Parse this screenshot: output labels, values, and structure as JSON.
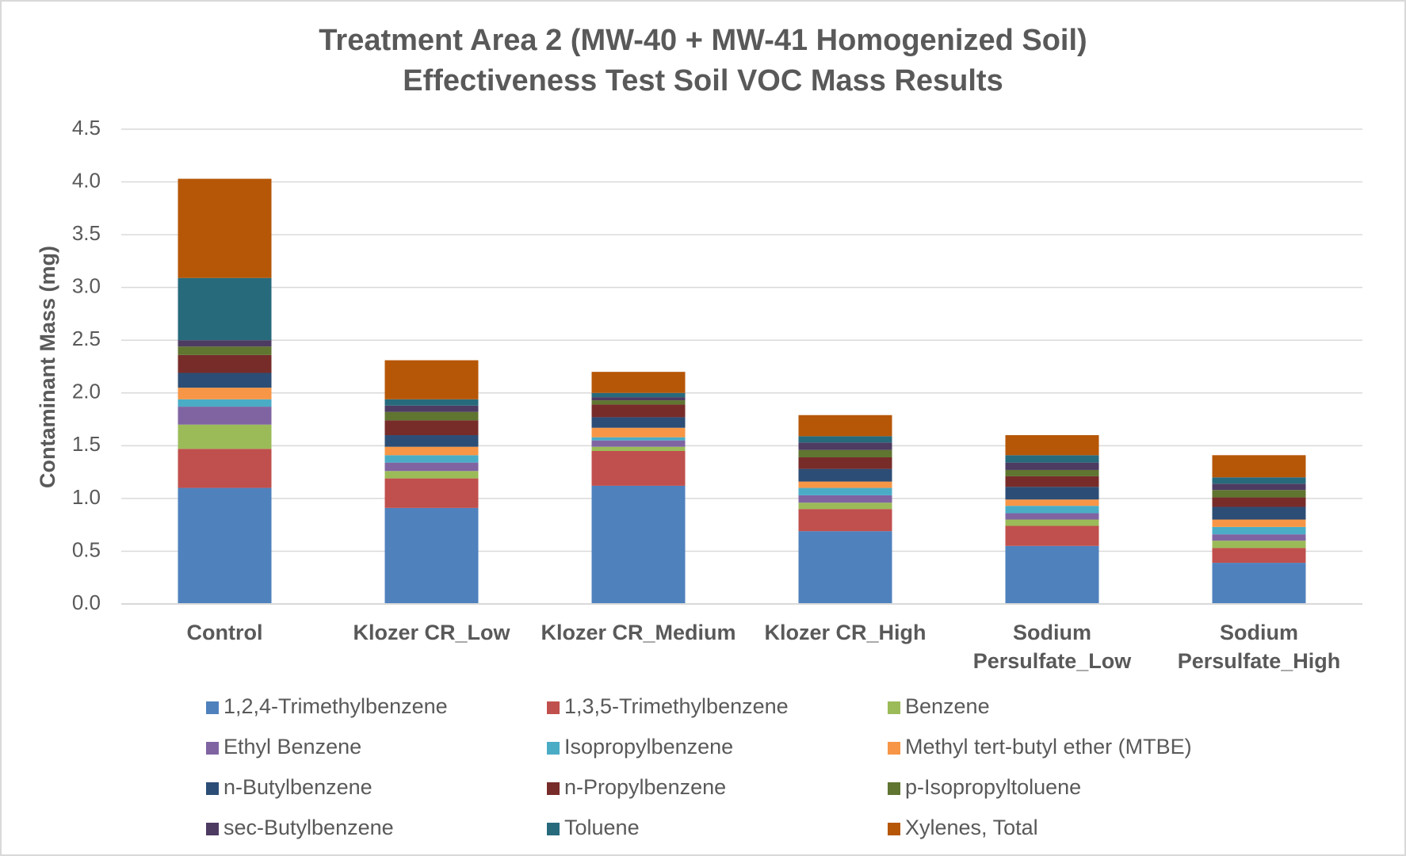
{
  "chart_data": {
    "type": "stacked_bar",
    "title": "Treatment Area 2 (MW-40 + MW-41 Homogenized Soil)",
    "subtitle": "Effectiveness Test Soil VOC Mass Results",
    "y_label": "Contaminant Mass (mg)",
    "categories": [
      "Control",
      "Klozer CR_Low",
      "Klozer CR_Medium",
      "Klozer CR_High",
      "Sodium Persulfate_Low",
      "Sodium Persulfate_High"
    ],
    "ylim": [
      0,
      4.5
    ],
    "yticks": [
      {
        "value": 0,
        "label": "0.0"
      },
      0.5,
      {
        "value": 1,
        "label": "1.0"
      },
      1.5,
      {
        "value": 2,
        "label": "2.0"
      },
      2.5,
      {
        "value": 3,
        "label": "3.0"
      },
      3.5,
      {
        "value": 4,
        "label": "4.0"
      },
      4.5
    ],
    "grid": true,
    "legend": "bottom",
    "series": [
      {
        "name": "1,2,4-Trimethylbenzene",
        "color": "#4f81bd",
        "values": [
          1.1,
          0.91,
          1.12,
          0.69,
          0.55,
          0.39
        ]
      },
      {
        "name": "1,3,5-Trimethylbenzene",
        "color": "#c0504d",
        "values": [
          0.37,
          0.28,
          0.33,
          0.21,
          0.19,
          0.14
        ]
      },
      {
        "name": "Benzene",
        "color": "#9bbb59",
        "values": [
          0.23,
          0.07,
          0.04,
          0.06,
          0.06,
          0.07
        ]
      },
      {
        "name": "Ethyl Benzene",
        "color": "#8064a2",
        "values": [
          0.17,
          0.08,
          0.06,
          0.07,
          0.06,
          0.06
        ]
      },
      {
        "name": "Isopropylbenzene",
        "color": "#4bacc6",
        "values": [
          0.07,
          0.07,
          0.03,
          0.07,
          0.07,
          0.07
        ]
      },
      {
        "name": "Methyl tert-butyl ether (MTBE)",
        "color": "#f79646",
        "values": [
          0.11,
          0.08,
          0.09,
          0.06,
          0.06,
          0.07
        ]
      },
      {
        "name": "n-Butylbenzene",
        "color": "#2c4d75",
        "values": [
          0.14,
          0.11,
          0.1,
          0.12,
          0.12,
          0.12
        ]
      },
      {
        "name": "n-Propylbenzene",
        "color": "#772c2a",
        "values": [
          0.17,
          0.14,
          0.12,
          0.11,
          0.1,
          0.09
        ]
      },
      {
        "name": "p-Isopropyltoluene",
        "color": "#5f7530",
        "values": [
          0.08,
          0.08,
          0.04,
          0.07,
          0.06,
          0.07
        ]
      },
      {
        "name": "sec-Butylbenzene",
        "color": "#4d3b62",
        "values": [
          0.06,
          0.06,
          0.03,
          0.07,
          0.07,
          0.06
        ]
      },
      {
        "name": "Toluene",
        "color": "#276a7c",
        "values": [
          0.59,
          0.06,
          0.04,
          0.06,
          0.07,
          0.06
        ]
      },
      {
        "name": "Xylenes, Total",
        "color": "#b65708",
        "values": [
          0.94,
          0.37,
          0.2,
          0.2,
          0.19,
          0.21
        ]
      }
    ]
  }
}
